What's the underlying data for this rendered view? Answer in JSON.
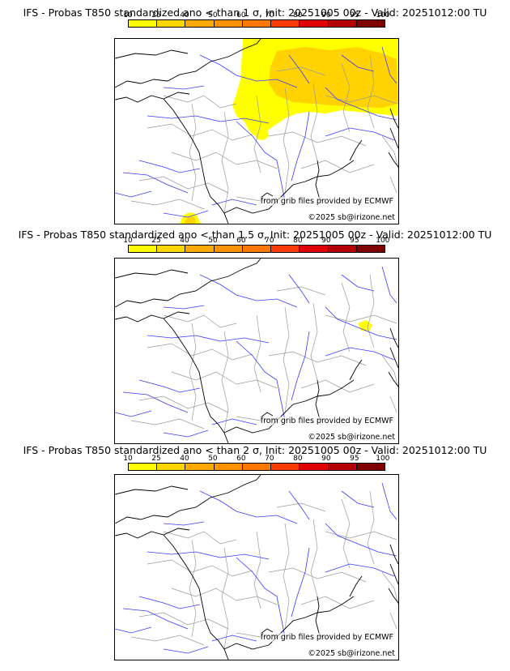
{
  "colorbar": {
    "ticks": [
      "10",
      "25",
      "40",
      "50",
      "60",
      "70",
      "80",
      "90",
      "95",
      "100"
    ],
    "colors": [
      "#ffff00",
      "#ffd700",
      "#ffaa00",
      "#ff9200",
      "#ff7800",
      "#ff3c00",
      "#e00000",
      "#b40000",
      "#800000",
      "#500000"
    ]
  },
  "panels": [
    {
      "title": "IFS - Probas T850  standardized ano < than 1 σ, Init: 20251005 00z - Valid: 20251012:00 TU",
      "credit_source": "from grib files provided by ECMWF",
      "credit_copyright": "©2025 sb@irizone.net"
    },
    {
      "title": "IFS - Probas T850  standardized ano < than 1.5 σ, Init: 20251005 00z - Valid: 20251012:00 TU",
      "credit_source": "from grib files provided by ECMWF",
      "credit_copyright": "©2025 sb@irizone.net"
    },
    {
      "title": "IFS - Probas T850  standardized ano < than 2 σ, Init: 20251005 00z - Valid: 20251012:00 TU",
      "credit_source": "from grib files provided by ECMWF",
      "credit_copyright": "©2025 sb@irizone.net"
    }
  ],
  "colors": {
    "coast": "#000000",
    "rivers": "#3a3aff",
    "borders": "#9a9a9a",
    "prob_low": "#ffff00",
    "prob_mid": "#ffd200"
  }
}
